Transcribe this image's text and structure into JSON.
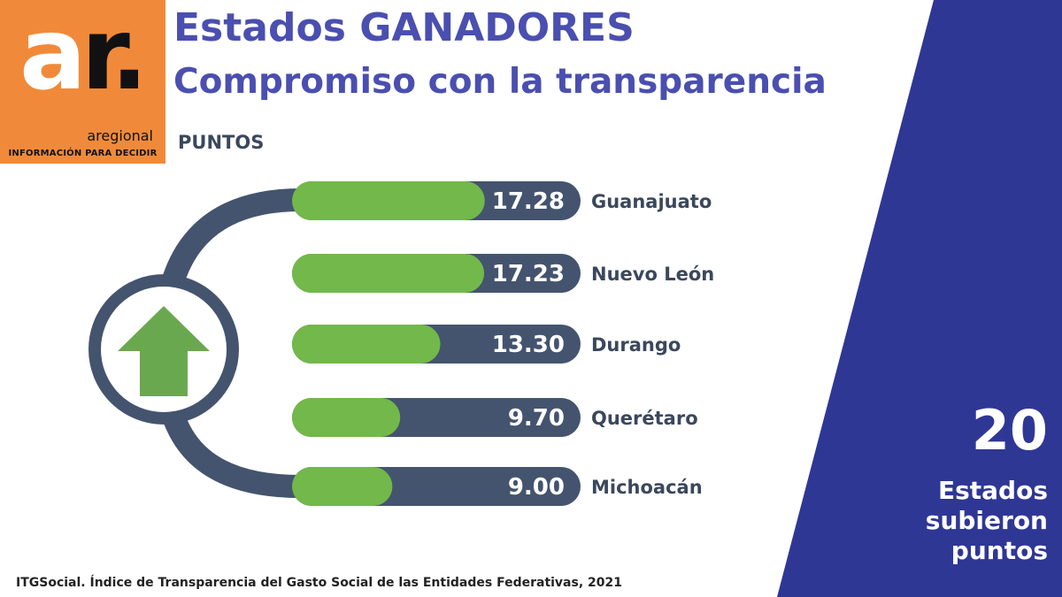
{
  "logo": {
    "mark_a": "a",
    "mark_r": "r.",
    "brand": "aregional",
    "tagline": "INFORMACIÓN PARA DECIDIR"
  },
  "title_line1": "Estados GANADORES",
  "title_line2": "Compromiso con la transparencia",
  "unit_label": "PUNTOS",
  "side_panel": {
    "number": "20",
    "caption": "Estados\nsubieron\npuntos"
  },
  "source": "ITGSocial. Índice de Transparencia del Gasto Social de las Entidades Federativas, 2021",
  "colors": {
    "accent_title": "#4a4fb0",
    "panel": "#2f3795",
    "track": "#44546e",
    "bar_fill": "#72b84a",
    "logo_bg": "#f08a3a",
    "label": "#3b475c"
  },
  "icons": {
    "center": "up-arrow-icon"
  },
  "chart_data": {
    "type": "bar",
    "orientation": "horizontal",
    "title": "Estados GANADORES",
    "categories": [
      "Guanajuato",
      "Nuevo León",
      "Durango",
      "Querétaro",
      "Michoacán"
    ],
    "values": [
      17.28,
      17.23,
      13.3,
      9.7,
      9.0
    ],
    "value_labels": [
      "17.28",
      "17.23",
      "13.30",
      "9.70",
      "9.00"
    ],
    "xlim": [
      0,
      25
    ],
    "grid": false,
    "legend": "none"
  }
}
